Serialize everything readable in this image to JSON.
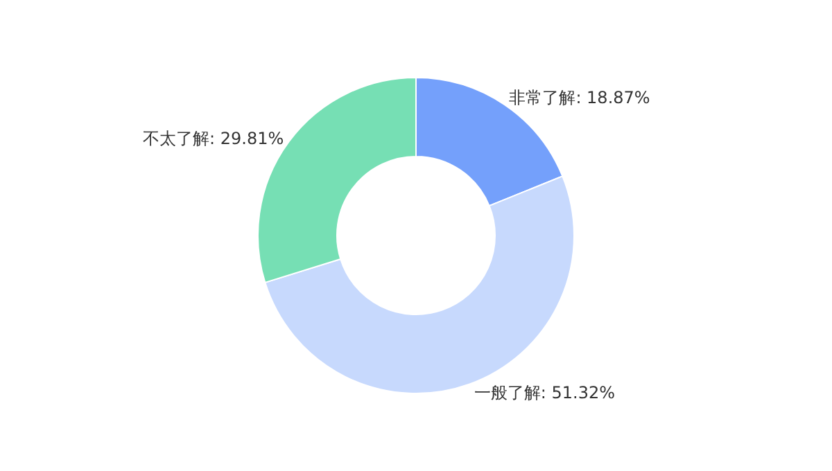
{
  "chart_data": {
    "type": "donut",
    "categories": [
      "非常了解",
      "一般了解",
      "不太了解"
    ],
    "values": [
      18.87,
      51.32,
      29.81
    ],
    "value_labels": [
      "18.87%",
      "51.32%",
      "29.81%"
    ],
    "colors": [
      "#74a0fb",
      "#c7d9fd",
      "#76dfb4"
    ],
    "legend": false
  }
}
